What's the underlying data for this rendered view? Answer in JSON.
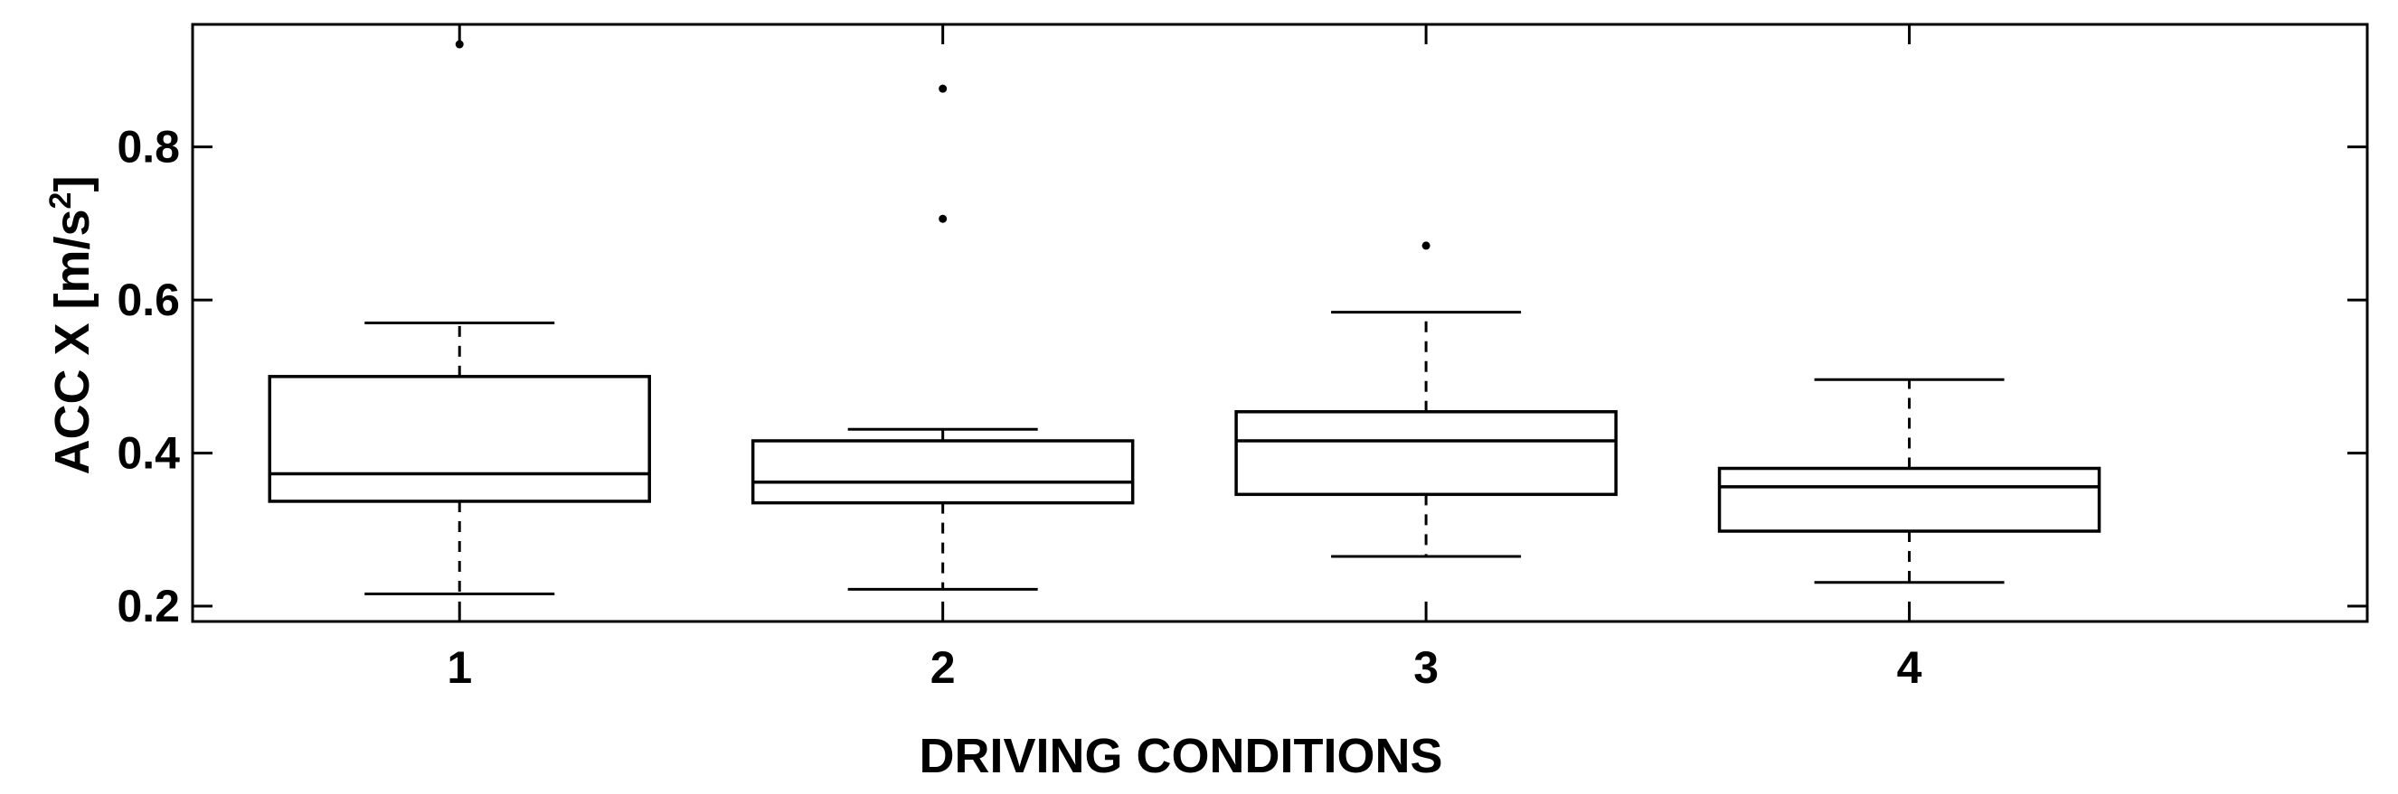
{
  "chart_data": {
    "type": "box",
    "title": "",
    "xlabel": "DRIVING CONDITIONS",
    "ylabel": "ACC X [m/s",
    "ylabel_superscript": "2",
    "ylabel_suffix": "]",
    "ylim": [
      0.18,
      0.96
    ],
    "yticks": [
      0.2,
      0.4,
      0.6,
      0.8
    ],
    "ytick_labels": [
      "0.2",
      "0.4",
      "0.6",
      "0.8"
    ],
    "categories": [
      "1",
      "2",
      "3",
      "4"
    ],
    "boxes": [
      {
        "category": "1",
        "whisker_low": 0.216,
        "q1": 0.337,
        "median": 0.373,
        "q3": 0.5,
        "whisker_high": 0.57,
        "outliers": [
          0.934
        ]
      },
      {
        "category": "2",
        "whisker_low": 0.222,
        "q1": 0.335,
        "median": 0.362,
        "q3": 0.416,
        "whisker_high": 0.431,
        "outliers": [
          0.706,
          0.876
        ]
      },
      {
        "category": "3",
        "whisker_low": 0.265,
        "q1": 0.346,
        "median": 0.416,
        "q3": 0.454,
        "whisker_high": 0.584,
        "outliers": [
          0.671
        ]
      },
      {
        "category": "4",
        "whisker_low": 0.231,
        "q1": 0.298,
        "median": 0.356,
        "q3": 0.38,
        "whisker_high": 0.496,
        "outliers": []
      }
    ],
    "colors": {
      "box_stroke": "#000000",
      "whisker_stroke": "#000000",
      "background": "#ffffff"
    },
    "grid": false,
    "legend": "none"
  }
}
